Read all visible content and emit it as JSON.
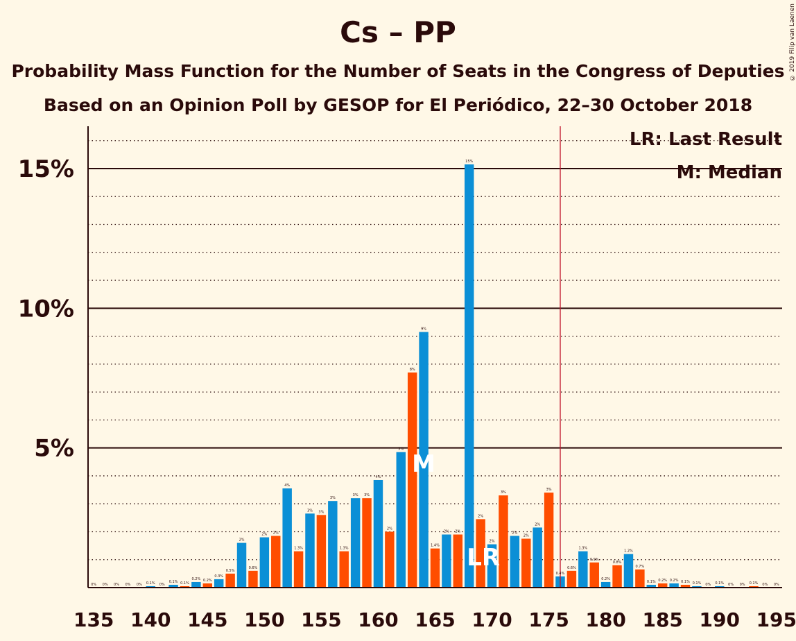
{
  "title": "Cs – PP",
  "subtitle1": "Probability Mass Function for the Number of Seats in the Congress of Deputies",
  "subtitle2": "Based on an Opinion Poll by GESOP for El Periódico, 22–30 October 2018",
  "copyright": "© 2019 Filip van Laenen",
  "legend": {
    "lr": "LR: Last Result",
    "m": "M: Median"
  },
  "markers": {
    "median": "M",
    "last_result": "LR"
  },
  "colors": {
    "background": "#fff8e7",
    "blue": "#0b8fd6",
    "orange": "#ff4d00",
    "majority_line": "#c0142a",
    "text": "#2a0a0a"
  },
  "chart_data": {
    "type": "bar",
    "x": [
      135,
      136,
      137,
      138,
      139,
      140,
      141,
      142,
      143,
      144,
      145,
      146,
      147,
      148,
      149,
      150,
      151,
      152,
      153,
      154,
      155,
      156,
      157,
      158,
      159,
      160,
      161,
      162,
      163,
      164,
      165,
      166,
      167,
      168,
      169,
      170,
      171,
      172,
      173,
      174,
      175,
      176,
      177,
      178,
      179,
      180,
      181,
      182,
      183,
      184,
      185,
      186,
      187,
      188,
      189,
      190,
      191,
      192,
      193,
      194,
      195
    ],
    "values": [
      0.0,
      0.0,
      0.0,
      0.0,
      0.0,
      0.05,
      0.0,
      0.1,
      0.05,
      0.2,
      0.15,
      0.3,
      0.5,
      1.6,
      0.6,
      1.8,
      1.85,
      3.55,
      1.3,
      2.65,
      2.6,
      3.1,
      1.3,
      3.2,
      3.2,
      3.85,
      2.0,
      4.85,
      7.7,
      9.15,
      1.4,
      1.9,
      1.9,
      15.15,
      2.45,
      1.55,
      3.3,
      1.85,
      1.75,
      2.15,
      3.4,
      0.4,
      0.6,
      1.3,
      0.9,
      0.2,
      0.8,
      1.2,
      0.65,
      0.1,
      0.15,
      0.15,
      0.1,
      0.05,
      0.0,
      0.05,
      0.0,
      0.0,
      0.05,
      0.0,
      0.0
    ],
    "labels": [
      "0%",
      "0%",
      "0%",
      "0%",
      "0%",
      "0.1%",
      "0%",
      "0.1%",
      "0.1%",
      "0.2%",
      "0.2%",
      "0.3%",
      "0.5%",
      "2%",
      "0.6%",
      "2%",
      "2%",
      "4%",
      "1.3%",
      "3%",
      "3%",
      "3%",
      "1.3%",
      "3%",
      "3%",
      "4%",
      "2%",
      "5%",
      "8%",
      "9%",
      "1.4%",
      "2%",
      "2%",
      "15%",
      "2%",
      "2%",
      "3%",
      "2%",
      "2%",
      "2%",
      "3%",
      "0.4%",
      "0.6%",
      "1.3%",
      "0.9%",
      "0.2%",
      "0.8%",
      "1.2%",
      "0.7%",
      "0.1%",
      "0.2%",
      "0.2%",
      "0.1%",
      "0.1%",
      "0%",
      "0.1%",
      "0%",
      "0%",
      "0.1%",
      "0%",
      "0%"
    ],
    "x_ticks": [
      "135",
      "140",
      "145",
      "150",
      "155",
      "160",
      "165",
      "170",
      "175",
      "180",
      "185",
      "190",
      "195"
    ],
    "y_ticks": [
      "5%",
      "10%",
      "15%"
    ],
    "ylim": [
      0,
      16.5
    ],
    "xlim": [
      134.5,
      195.5
    ],
    "median": 164,
    "last_result": 169,
    "majority": 176,
    "color_rule": "odd seat counts orange, even seat counts blue"
  }
}
